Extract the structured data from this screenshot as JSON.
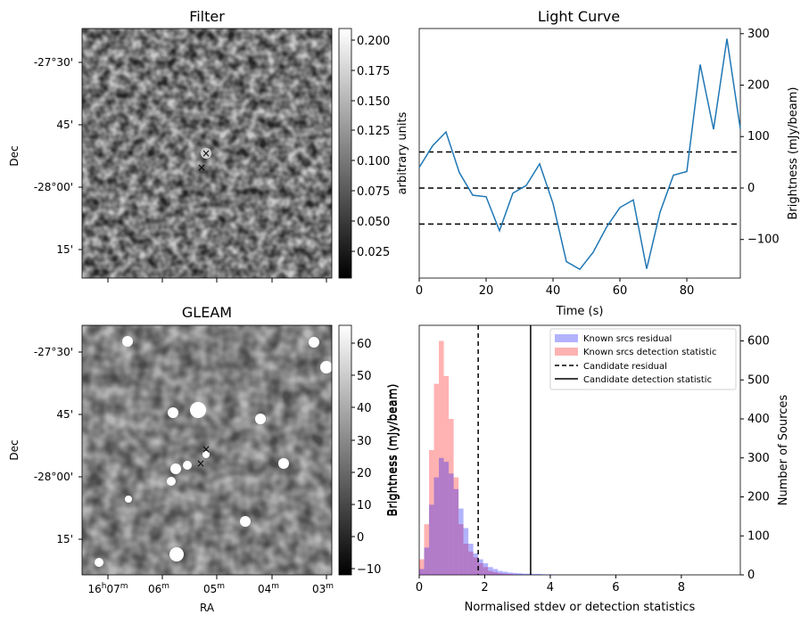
{
  "panels": {
    "filter": {
      "title": "Filter",
      "ylabel": "Dec",
      "yticks": [
        "-27°30'",
        "45'",
        "-28°00'",
        "15'"
      ],
      "colorbar_label": "arbitrary units",
      "colorbar_ticks": [
        "0.200",
        "0.175",
        "0.150",
        "0.125",
        "0.100",
        "0.075",
        "0.050",
        "0.025"
      ]
    },
    "gleam": {
      "title": "GLEAM",
      "ylabel": "Dec",
      "xlabel": "RA",
      "yticks": [
        "-27°30'",
        "45'",
        "-28°00'",
        "15'"
      ],
      "xticks": [
        {
          "main": "16",
          "h": "h",
          "min": "07",
          "m": "m"
        },
        {
          "main": "06",
          "m": "m"
        },
        {
          "main": "05",
          "m": "m"
        },
        {
          "main": "04",
          "m": "m"
        },
        {
          "main": "03",
          "m": "m"
        }
      ],
      "colorbar_label": "Brightness (mJy/beam)",
      "colorbar_ticks": [
        "60",
        "50",
        "40",
        "30",
        "20",
        "10",
        "0",
        "−10"
      ]
    }
  },
  "markers": {
    "red": "#e00000",
    "blue": "#0000e0",
    "symbol": "×"
  },
  "chart_data": [
    {
      "type": "line",
      "title": "Light Curve",
      "xlabel": "Time (s)",
      "ylabel": "Brightness (mJy/beam)",
      "xlim": [
        0,
        96
      ],
      "ylim": [
        -175,
        310
      ],
      "xticks": [
        "0",
        "20",
        "40",
        "60",
        "80"
      ],
      "yticks": [
        "−100",
        "0",
        "100",
        "200",
        "300"
      ],
      "color": "#1f77b4",
      "x": [
        0,
        4,
        8,
        12,
        16,
        20,
        24,
        28,
        32,
        36,
        40,
        44,
        48,
        52,
        56,
        60,
        64,
        68,
        72,
        76,
        80,
        84,
        88,
        92,
        96
      ],
      "y": [
        40,
        82,
        109,
        30,
        -14,
        -17,
        -83,
        -10,
        5,
        47,
        -30,
        -143,
        -158,
        -125,
        -76,
        -38,
        -23,
        -157,
        -47,
        25,
        32,
        240,
        114,
        290,
        115
      ],
      "hlines": [
        70,
        0,
        -70
      ],
      "hline_style": "dashed",
      "hline_color": "#000000"
    },
    {
      "type": "histogram",
      "xlabel": "Normalised stdev or detection statistics",
      "ylabel_left": "Brightness (mJy/beam)",
      "ylabel_right": "Number of Sources",
      "xlim": [
        0,
        9.8
      ],
      "ylim": [
        0,
        640
      ],
      "xticks": [
        "0",
        "2",
        "4",
        "6",
        "8"
      ],
      "yticks": [
        "0",
        "100",
        "200",
        "300",
        "400",
        "500",
        "600"
      ],
      "bin_width": 0.15,
      "series": [
        {
          "name": "Known srcs detection statistic",
          "color": "#ff0000",
          "alpha": 0.3,
          "bin_start": 0.0,
          "counts": [
            40,
            130,
            320,
            490,
            600,
            510,
            400,
            250,
            130,
            80,
            60,
            45,
            30,
            20,
            10,
            7,
            4,
            3,
            2,
            1
          ]
        },
        {
          "name": "Known srcs residual",
          "color": "#0000ff",
          "alpha": 0.3,
          "bin_start": 0.0,
          "counts": [
            15,
            70,
            180,
            250,
            300,
            290,
            260,
            220,
            170,
            120,
            80,
            55,
            40,
            30,
            20,
            15,
            10,
            8,
            6,
            5,
            4,
            3,
            3,
            2,
            2,
            1,
            1,
            1
          ]
        }
      ],
      "vlines": [
        {
          "name": "Candidate residual",
          "x": 1.8,
          "style": "dashed"
        },
        {
          "name": "Candidate detection statistic",
          "x": 3.4,
          "style": "solid"
        }
      ],
      "legend": {
        "position": "upper-right",
        "entries": [
          "Known srcs residual",
          "Known srcs detection statistic",
          "Candidate residual",
          "Candidate detection statistic"
        ]
      }
    }
  ]
}
